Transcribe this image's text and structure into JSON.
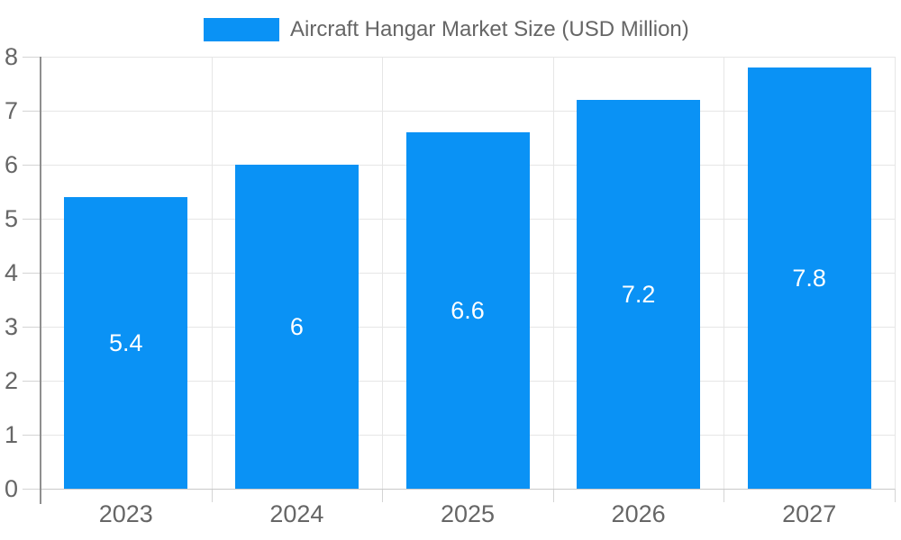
{
  "legend": {
    "label": "Aircraft Hangar Market Size (USD Million)",
    "position": "top"
  },
  "colors": {
    "bar": "#0a92f5",
    "text": "#666666",
    "grid": "#e6e6e6",
    "axis": "#8f8f8f",
    "baseline": "#c9c9c9",
    "tick": "#d4d4d4",
    "value_label": "#ffffff",
    "background": "#ffffff"
  },
  "chart_data": {
    "type": "bar",
    "title": "Aircraft Hangar Market Size (USD Million)",
    "categories": [
      "2023",
      "2024",
      "2025",
      "2026",
      "2027"
    ],
    "series": [
      {
        "name": "Aircraft Hangar Market Size (USD Million)",
        "values": [
          5.4,
          6,
          6.6,
          7.2,
          7.8
        ]
      }
    ],
    "value_labels": [
      "5.4",
      "6",
      "6.6",
      "7.2",
      "7.8"
    ],
    "value_label_position": "inside-center",
    "xlabel": "",
    "ylabel": "",
    "ylim": [
      0,
      8
    ],
    "y_ticks": [
      0,
      1,
      2,
      3,
      4,
      5,
      6,
      7,
      8
    ],
    "y_tick_labels": [
      "0",
      "1",
      "2",
      "3",
      "4",
      "5",
      "6",
      "7",
      "8"
    ],
    "grid": "horizontal lines at each y tick, vertical lines at category boundaries",
    "legend_position": "top-center"
  }
}
